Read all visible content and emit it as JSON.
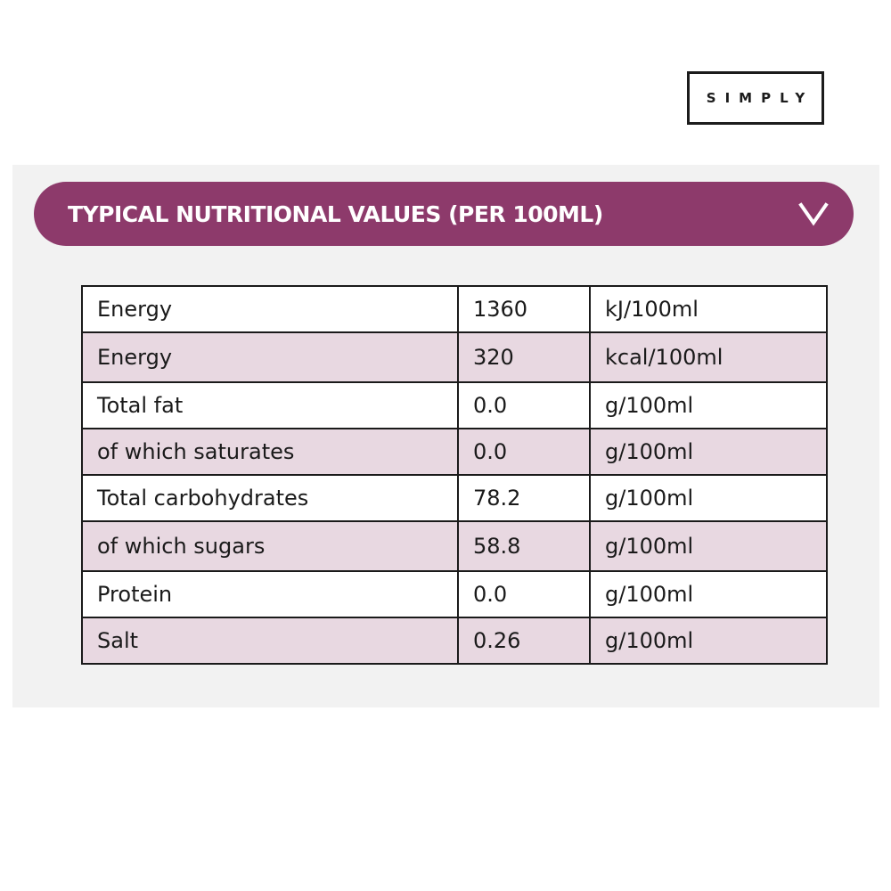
{
  "brand": {
    "logo_text": "SIMPLY"
  },
  "accordion": {
    "title": "TYPICAL NUTRITIONAL VALUES (PER 100ML)",
    "toggle_icon": "chevron-down-icon",
    "expanded": true
  },
  "colors": {
    "accent": "#8d3a6b",
    "row_tint": "#e8d8e1",
    "panel_bg": "#f2f2f2",
    "border": "#1a1a1a"
  },
  "nutrition_table": {
    "rows": [
      {
        "name": "Energy",
        "value": "1360",
        "unit": "kJ/100ml"
      },
      {
        "name": "Energy",
        "value": "320",
        "unit": "kcal/100ml"
      },
      {
        "name": "Total fat",
        "value": "0.0",
        "unit": "g/100ml"
      },
      {
        "name": "of which saturates",
        "value": "0.0",
        "unit": "g/100ml"
      },
      {
        "name": "Total carbohydrates",
        "value": "78.2",
        "unit": "g/100ml"
      },
      {
        "name": "of which sugars",
        "value": "58.8",
        "unit": "g/100ml"
      },
      {
        "name": "Protein",
        "value": "0.0",
        "unit": "g/100ml"
      },
      {
        "name": "Salt",
        "value": "0.26",
        "unit": "g/100ml"
      }
    ]
  }
}
